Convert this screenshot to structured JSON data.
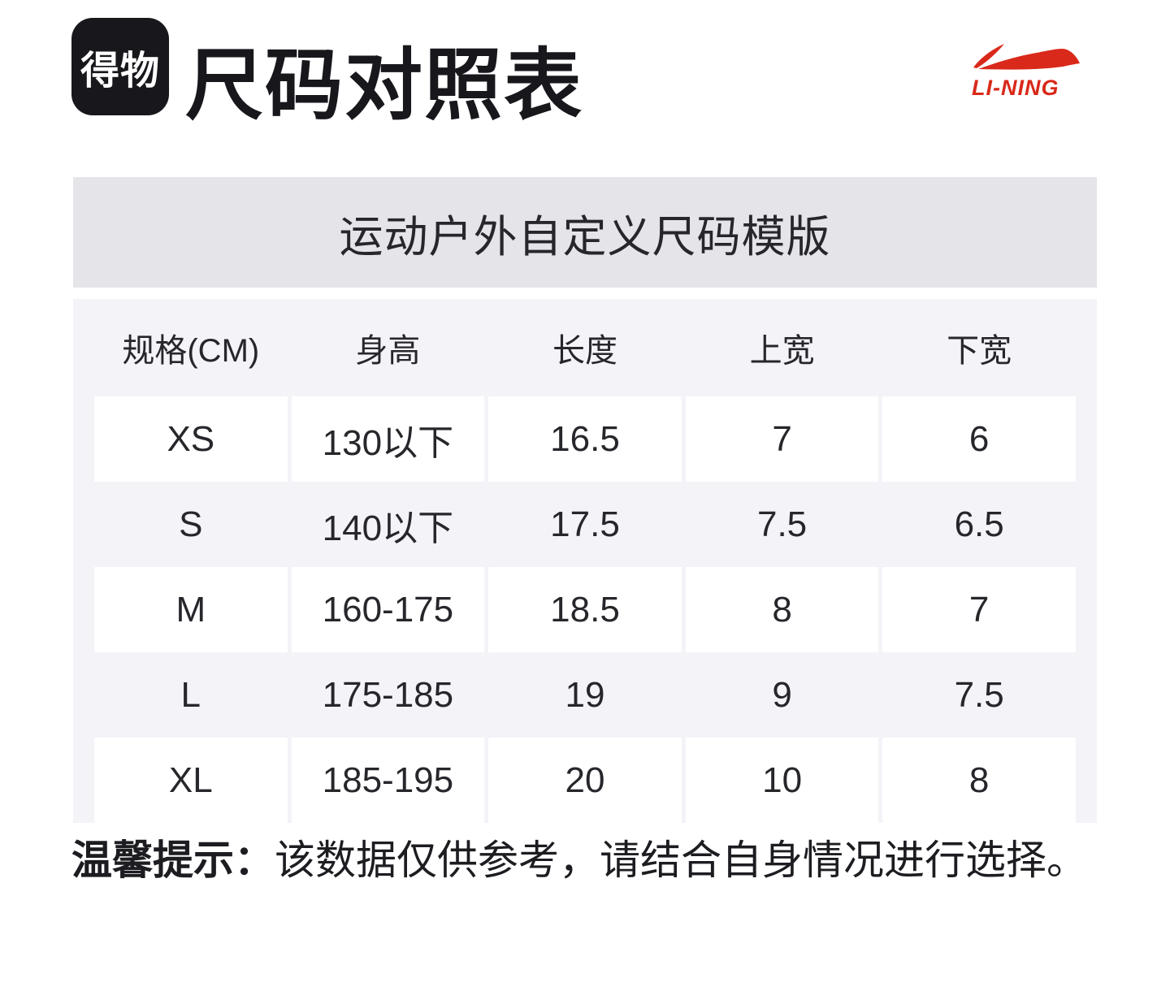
{
  "header": {
    "dewu_logo_text": "得物",
    "title": "尺码对照表",
    "brand_logo_text": "LI-NING"
  },
  "banner": {
    "text": "运动户外自定义尺码模版"
  },
  "table": {
    "columns": [
      "规格(CM)",
      "身高",
      "长度",
      "上宽",
      "下宽"
    ],
    "rows": [
      [
        "XS",
        "130以下",
        "16.5",
        "7",
        "6"
      ],
      [
        "S",
        "140以下",
        "17.5",
        "7.5",
        "6.5"
      ],
      [
        "M",
        "160-175",
        "18.5",
        "8",
        "7"
      ],
      [
        "L",
        "175-185",
        "19",
        "9",
        "7.5"
      ],
      [
        "XL",
        "185-195",
        "20",
        "10",
        "8"
      ]
    ]
  },
  "note": {
    "label": "温馨提示：",
    "text": "该数据仅供参考，请结合自身情况进行选择。"
  },
  "colors": {
    "brand_red": "#D9291A",
    "banner_bg": "#E5E4E9",
    "table_bg": "#F4F3F8",
    "logo_bg": "#17171C",
    "text": "#26262B"
  }
}
